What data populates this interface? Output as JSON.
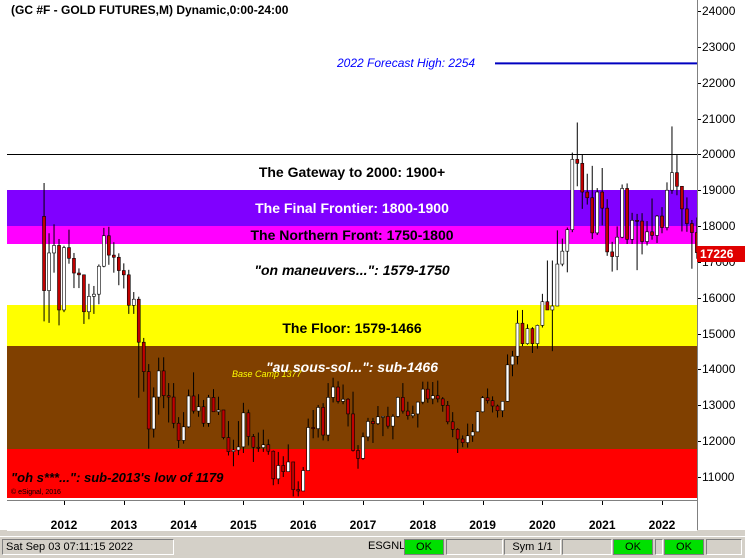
{
  "window": {
    "title": "(GC #F - GOLD FUTURES,M) Dynamic,0:00-24:00"
  },
  "status_bar": {
    "datetime": "Sat Sep 03 07:11:15 2022",
    "esgnl_label": "ESGNL:",
    "ok1": "OK",
    "sym_label": "Sym 1/1",
    "ok2": "OK",
    "ok3": "OK"
  },
  "colors": {
    "gateway": "#ffffff",
    "final_frontier": "#8000ff",
    "northern_front": "#ff00ff",
    "maneuvers": "#ffffff",
    "floor": "#ffff00",
    "sous_sol": "#804000",
    "oh_s": "#ff0000",
    "forecast_line": "#0000c0",
    "price_tag": "#e00000",
    "candle_up": "#ffffff",
    "candle_down": "#c00000"
  },
  "chart_data": {
    "type": "candlestick",
    "title": "(GC #F - GOLD FUTURES,M) Dynamic,0:00-24:00",
    "yaxis": {
      "ticks": [
        "24000",
        "23000",
        "22000",
        "21000",
        "20000",
        "19000",
        "18000",
        "17000",
        "16000",
        "15000",
        "14000",
        "13000",
        "12000",
        "11000"
      ],
      "range": [
        10400,
        24200
      ]
    },
    "xaxis": {
      "ticks": [
        "2012",
        "2013",
        "2014",
        "2015",
        "2016",
        "2017",
        "2018",
        "2019",
        "2020",
        "2021",
        "2022"
      ],
      "range": [
        "2011-09",
        "2022-09"
      ]
    },
    "last_price": "17226",
    "forecast": {
      "label": "2022 Forecast High:  2254",
      "value": 22540
    },
    "bands": [
      {
        "key": "gateway",
        "label": "The Gateway to 2000:  1900+",
        "low": 19000,
        "high": 20000,
        "text_color": "#000000",
        "italic": false
      },
      {
        "key": "final_frontier",
        "label": "The Final Frontier:  1800-1900",
        "low": 18000,
        "high": 19000,
        "text_color": "#ffffff",
        "italic": false
      },
      {
        "key": "northern_front",
        "label": "The Northern Front:  1750-1800",
        "low": 17500,
        "high": 18000,
        "text_color": "#000000",
        "italic": false
      },
      {
        "key": "maneuvers",
        "label": "\"on maneuvers...\":  1579-1750",
        "low": 15790,
        "high": 17500,
        "text_color": "#000000",
        "italic": true
      },
      {
        "key": "floor",
        "label": "The Floor:  1579-1466",
        "low": 14660,
        "high": 15790,
        "text_color": "#000000",
        "italic": false
      },
      {
        "key": "sous_sol",
        "label": "\"au sous-sol...\":  sub-1466",
        "low": 11790,
        "high": 14660,
        "text_color": "#ffffff",
        "italic": true
      },
      {
        "key": "oh_s",
        "label": "\"oh s***...\":  sub-2013's low of 1179",
        "low": 10400,
        "high": 11790,
        "text_color": "#000000",
        "italic": true
      }
    ],
    "annotations": {
      "base_camp": "Base Camp 1377",
      "copyright": "© eSignal, 2016"
    },
    "candles": [
      {
        "d": "2011-09",
        "o": 18270,
        "h": 19200,
        "l": 15340,
        "c": 16200
      },
      {
        "d": "2011-10",
        "o": 16200,
        "h": 17800,
        "l": 15300,
        "c": 17250
      },
      {
        "d": "2011-11",
        "o": 17250,
        "h": 18050,
        "l": 16700,
        "c": 17460
      },
      {
        "d": "2011-12",
        "o": 17460,
        "h": 17640,
        "l": 15230,
        "c": 15660
      },
      {
        "d": "2012-01",
        "o": 15660,
        "h": 17450,
        "l": 15600,
        "c": 17400
      },
      {
        "d": "2012-02",
        "o": 17400,
        "h": 17900,
        "l": 16950,
        "c": 17100
      },
      {
        "d": "2012-03",
        "o": 17100,
        "h": 17250,
        "l": 16270,
        "c": 16690
      },
      {
        "d": "2012-04",
        "o": 16690,
        "h": 16820,
        "l": 16270,
        "c": 16640
      },
      {
        "d": "2012-05",
        "o": 16640,
        "h": 16650,
        "l": 15270,
        "c": 15610
      },
      {
        "d": "2012-06",
        "o": 15610,
        "h": 16390,
        "l": 15400,
        "c": 16040
      },
      {
        "d": "2012-07",
        "o": 16040,
        "h": 16330,
        "l": 15550,
        "c": 16100
      },
      {
        "d": "2012-08",
        "o": 16100,
        "h": 16930,
        "l": 15820,
        "c": 16880
      },
      {
        "d": "2012-09",
        "o": 16880,
        "h": 17950,
        "l": 16850,
        "c": 17730
      },
      {
        "d": "2012-10",
        "o": 17730,
        "h": 17980,
        "l": 16920,
        "c": 17190
      },
      {
        "d": "2012-11",
        "o": 17190,
        "h": 17550,
        "l": 16700,
        "c": 17130
      },
      {
        "d": "2012-12",
        "o": 17130,
        "h": 17240,
        "l": 16350,
        "c": 16760
      },
      {
        "d": "2013-01",
        "o": 16760,
        "h": 16960,
        "l": 16260,
        "c": 16640
      },
      {
        "d": "2013-02",
        "o": 16640,
        "h": 16780,
        "l": 15550,
        "c": 15790
      },
      {
        "d": "2013-03",
        "o": 15790,
        "h": 16160,
        "l": 15550,
        "c": 15960
      },
      {
        "d": "2013-04",
        "o": 15960,
        "h": 16030,
        "l": 13210,
        "c": 14760
      },
      {
        "d": "2013-05",
        "o": 14760,
        "h": 14880,
        "l": 13380,
        "c": 13940
      },
      {
        "d": "2013-06",
        "o": 13940,
        "h": 14150,
        "l": 11790,
        "c": 12340
      },
      {
        "d": "2013-07",
        "o": 12340,
        "h": 13500,
        "l": 12100,
        "c": 13230
      },
      {
        "d": "2013-08",
        "o": 13230,
        "h": 14330,
        "l": 12740,
        "c": 13960
      },
      {
        "d": "2013-09",
        "o": 13960,
        "h": 14340,
        "l": 12920,
        "c": 13270
      },
      {
        "d": "2013-10",
        "o": 13270,
        "h": 13620,
        "l": 12520,
        "c": 13230
      },
      {
        "d": "2013-11",
        "o": 13230,
        "h": 13620,
        "l": 12360,
        "c": 12500
      },
      {
        "d": "2013-12",
        "o": 12500,
        "h": 12670,
        "l": 11810,
        "c": 12020
      },
      {
        "d": "2014-01",
        "o": 12020,
        "h": 12810,
        "l": 11930,
        "c": 12400
      },
      {
        "d": "2014-02",
        "o": 12400,
        "h": 13440,
        "l": 12370,
        "c": 13260
      },
      {
        "d": "2014-03",
        "o": 13260,
        "h": 13920,
        "l": 12770,
        "c": 12840
      },
      {
        "d": "2014-04",
        "o": 12840,
        "h": 13310,
        "l": 12680,
        "c": 12960
      },
      {
        "d": "2014-05",
        "o": 12960,
        "h": 13150,
        "l": 12400,
        "c": 12500
      },
      {
        "d": "2014-06",
        "o": 12500,
        "h": 13290,
        "l": 12400,
        "c": 13220
      },
      {
        "d": "2014-07",
        "o": 13220,
        "h": 13450,
        "l": 12820,
        "c": 12820
      },
      {
        "d": "2014-08",
        "o": 12820,
        "h": 13240,
        "l": 12730,
        "c": 12870
      },
      {
        "d": "2014-09",
        "o": 12870,
        "h": 12870,
        "l": 12050,
        "c": 12100
      },
      {
        "d": "2014-10",
        "o": 12100,
        "h": 12560,
        "l": 11600,
        "c": 11710
      },
      {
        "d": "2014-11",
        "o": 11710,
        "h": 12040,
        "l": 11300,
        "c": 11750
      },
      {
        "d": "2014-12",
        "o": 11750,
        "h": 12560,
        "l": 11610,
        "c": 11840
      },
      {
        "d": "2015-01",
        "o": 11840,
        "h": 13070,
        "l": 11670,
        "c": 12790
      },
      {
        "d": "2015-02",
        "o": 12790,
        "h": 12880,
        "l": 11880,
        "c": 12130
      },
      {
        "d": "2015-03",
        "o": 12130,
        "h": 12200,
        "l": 11420,
        "c": 11830
      },
      {
        "d": "2015-04",
        "o": 11830,
        "h": 12240,
        "l": 11700,
        "c": 11820
      },
      {
        "d": "2015-05",
        "o": 11820,
        "h": 12320,
        "l": 11700,
        "c": 11900
      },
      {
        "d": "2015-06",
        "o": 11900,
        "h": 12050,
        "l": 11620,
        "c": 11720
      },
      {
        "d": "2015-07",
        "o": 11720,
        "h": 11740,
        "l": 10770,
        "c": 10950
      },
      {
        "d": "2015-08",
        "o": 10950,
        "h": 11700,
        "l": 10800,
        "c": 11320
      },
      {
        "d": "2015-09",
        "o": 11320,
        "h": 11580,
        "l": 11000,
        "c": 11150
      },
      {
        "d": "2015-10",
        "o": 11150,
        "h": 11910,
        "l": 11150,
        "c": 11420
      },
      {
        "d": "2015-11",
        "o": 11420,
        "h": 11420,
        "l": 10460,
        "c": 10650
      },
      {
        "d": "2015-12",
        "o": 10650,
        "h": 10880,
        "l": 10460,
        "c": 10610
      },
      {
        "d": "2016-01",
        "o": 10610,
        "h": 11280,
        "l": 10620,
        "c": 11180
      },
      {
        "d": "2016-02",
        "o": 11180,
        "h": 12630,
        "l": 11180,
        "c": 12380
      },
      {
        "d": "2016-03",
        "o": 12380,
        "h": 12870,
        "l": 12080,
        "c": 12350
      },
      {
        "d": "2016-04",
        "o": 12350,
        "h": 13010,
        "l": 12100,
        "c": 12940
      },
      {
        "d": "2016-05",
        "o": 12940,
        "h": 13060,
        "l": 12020,
        "c": 12170
      },
      {
        "d": "2016-06",
        "o": 12170,
        "h": 13620,
        "l": 12000,
        "c": 13220
      },
      {
        "d": "2016-07",
        "o": 13220,
        "h": 13770,
        "l": 13080,
        "c": 13510
      },
      {
        "d": "2016-08",
        "o": 13510,
        "h": 13670,
        "l": 13050,
        "c": 13110
      },
      {
        "d": "2016-09",
        "o": 13110,
        "h": 13580,
        "l": 13030,
        "c": 13170
      },
      {
        "d": "2016-10",
        "o": 13170,
        "h": 13200,
        "l": 12410,
        "c": 12760
      },
      {
        "d": "2016-11",
        "o": 12760,
        "h": 13380,
        "l": 11710,
        "c": 11740
      },
      {
        "d": "2016-12",
        "o": 11740,
        "h": 11890,
        "l": 11230,
        "c": 11520
      },
      {
        "d": "2017-01",
        "o": 11520,
        "h": 12240,
        "l": 11480,
        "c": 12120
      },
      {
        "d": "2017-02",
        "o": 12120,
        "h": 12650,
        "l": 12000,
        "c": 12550
      },
      {
        "d": "2017-03",
        "o": 12550,
        "h": 12650,
        "l": 11950,
        "c": 12490
      },
      {
        "d": "2017-04",
        "o": 12490,
        "h": 12980,
        "l": 12450,
        "c": 12680
      },
      {
        "d": "2017-05",
        "o": 12680,
        "h": 12700,
        "l": 12140,
        "c": 12690
      },
      {
        "d": "2017-06",
        "o": 12690,
        "h": 12960,
        "l": 12350,
        "c": 12420
      },
      {
        "d": "2017-07",
        "o": 12420,
        "h": 12750,
        "l": 12050,
        "c": 12690
      },
      {
        "d": "2017-08",
        "o": 12690,
        "h": 13240,
        "l": 12660,
        "c": 13220
      },
      {
        "d": "2017-09",
        "o": 13220,
        "h": 13620,
        "l": 12770,
        "c": 12840
      },
      {
        "d": "2017-10",
        "o": 12840,
        "h": 13100,
        "l": 12600,
        "c": 12710
      },
      {
        "d": "2017-11",
        "o": 12710,
        "h": 12990,
        "l": 12640,
        "c": 12760
      },
      {
        "d": "2017-12",
        "o": 12760,
        "h": 13100,
        "l": 12380,
        "c": 13090
      },
      {
        "d": "2018-01",
        "o": 13090,
        "h": 13660,
        "l": 13030,
        "c": 13450
      },
      {
        "d": "2018-02",
        "o": 13450,
        "h": 13660,
        "l": 13070,
        "c": 13180
      },
      {
        "d": "2018-03",
        "o": 13180,
        "h": 13650,
        "l": 13030,
        "c": 13270
      },
      {
        "d": "2018-04",
        "o": 13270,
        "h": 13690,
        "l": 13080,
        "c": 13180
      },
      {
        "d": "2018-05",
        "o": 13180,
        "h": 13230,
        "l": 12820,
        "c": 13000
      },
      {
        "d": "2018-06",
        "o": 13000,
        "h": 13120,
        "l": 12470,
        "c": 12540
      },
      {
        "d": "2018-07",
        "o": 12540,
        "h": 12810,
        "l": 12110,
        "c": 12330
      },
      {
        "d": "2018-08",
        "o": 12330,
        "h": 12360,
        "l": 11670,
        "c": 12060
      },
      {
        "d": "2018-09",
        "o": 12060,
        "h": 12160,
        "l": 11830,
        "c": 11960
      },
      {
        "d": "2018-10",
        "o": 11960,
        "h": 12490,
        "l": 11820,
        "c": 12150
      },
      {
        "d": "2018-11",
        "o": 12150,
        "h": 12480,
        "l": 11980,
        "c": 12260
      },
      {
        "d": "2018-12",
        "o": 12260,
        "h": 12840,
        "l": 12350,
        "c": 12820
      },
      {
        "d": "2019-01",
        "o": 12820,
        "h": 13260,
        "l": 12800,
        "c": 13210
      },
      {
        "d": "2019-02",
        "o": 13210,
        "h": 13470,
        "l": 13050,
        "c": 13130
      },
      {
        "d": "2019-03",
        "o": 13130,
        "h": 13250,
        "l": 12800,
        "c": 12980
      },
      {
        "d": "2019-04",
        "o": 12980,
        "h": 13020,
        "l": 12660,
        "c": 12850
      },
      {
        "d": "2019-05",
        "o": 12850,
        "h": 13120,
        "l": 12670,
        "c": 13110
      },
      {
        "d": "2019-06",
        "o": 13110,
        "h": 14420,
        "l": 13100,
        "c": 14130
      },
      {
        "d": "2019-07",
        "o": 14130,
        "h": 14520,
        "l": 13810,
        "c": 14370
      },
      {
        "d": "2019-08",
        "o": 14370,
        "h": 15650,
        "l": 14140,
        "c": 15290
      },
      {
        "d": "2019-09",
        "o": 15290,
        "h": 15660,
        "l": 14650,
        "c": 14720
      },
      {
        "d": "2019-10",
        "o": 14720,
        "h": 15260,
        "l": 14690,
        "c": 15140
      },
      {
        "d": "2019-11",
        "o": 15140,
        "h": 15180,
        "l": 14460,
        "c": 14720
      },
      {
        "d": "2019-12",
        "o": 14720,
        "h": 15250,
        "l": 14580,
        "c": 15230
      },
      {
        "d": "2020-01",
        "o": 15230,
        "h": 16110,
        "l": 15170,
        "c": 15890
      },
      {
        "d": "2020-02",
        "o": 15890,
        "h": 17040,
        "l": 15750,
        "c": 15660
      },
      {
        "d": "2020-03",
        "o": 15660,
        "h": 17040,
        "l": 14510,
        "c": 15770
      },
      {
        "d": "2020-04",
        "o": 15770,
        "h": 17880,
        "l": 15800,
        "c": 16940
      },
      {
        "d": "2020-05",
        "o": 16940,
        "h": 17650,
        "l": 16880,
        "c": 17300
      },
      {
        "d": "2020-06",
        "o": 17300,
        "h": 17960,
        "l": 16710,
        "c": 17900
      },
      {
        "d": "2020-07",
        "o": 17900,
        "h": 20050,
        "l": 17830,
        "c": 19860
      },
      {
        "d": "2020-08",
        "o": 19860,
        "h": 20890,
        "l": 19110,
        "c": 19750
      },
      {
        "d": "2020-09",
        "o": 19750,
        "h": 19990,
        "l": 18480,
        "c": 18950
      },
      {
        "d": "2020-10",
        "o": 18950,
        "h": 19460,
        "l": 18600,
        "c": 18790
      },
      {
        "d": "2020-11",
        "o": 18790,
        "h": 19680,
        "l": 17640,
        "c": 17810
      },
      {
        "d": "2020-12",
        "o": 17810,
        "h": 19060,
        "l": 17750,
        "c": 18950
      },
      {
        "d": "2021-01",
        "o": 18950,
        "h": 19620,
        "l": 18020,
        "c": 18500
      },
      {
        "d": "2021-02",
        "o": 18500,
        "h": 18750,
        "l": 17170,
        "c": 17280
      },
      {
        "d": "2021-03",
        "o": 17280,
        "h": 17560,
        "l": 16730,
        "c": 17150
      },
      {
        "d": "2021-04",
        "o": 17150,
        "h": 17990,
        "l": 16770,
        "c": 17690
      },
      {
        "d": "2021-05",
        "o": 17690,
        "h": 19160,
        "l": 17660,
        "c": 19050
      },
      {
        "d": "2021-06",
        "o": 19050,
        "h": 19190,
        "l": 17500,
        "c": 17630
      },
      {
        "d": "2021-07",
        "o": 17630,
        "h": 18370,
        "l": 17500,
        "c": 18160
      },
      {
        "d": "2021-08",
        "o": 18160,
        "h": 18340,
        "l": 16770,
        "c": 18140
      },
      {
        "d": "2021-09",
        "o": 18140,
        "h": 18360,
        "l": 17210,
        "c": 17570
      },
      {
        "d": "2021-10",
        "o": 17570,
        "h": 18140,
        "l": 17460,
        "c": 17840
      },
      {
        "d": "2021-11",
        "o": 17840,
        "h": 18770,
        "l": 17620,
        "c": 17740
      },
      {
        "d": "2021-12",
        "o": 17740,
        "h": 18310,
        "l": 17530,
        "c": 18280
      },
      {
        "d": "2022-01",
        "o": 18280,
        "h": 18530,
        "l": 17800,
        "c": 17960
      },
      {
        "d": "2022-02",
        "o": 17960,
        "h": 19220,
        "l": 17880,
        "c": 19000
      },
      {
        "d": "2022-03",
        "o": 19000,
        "h": 20780,
        "l": 18900,
        "c": 19490
      },
      {
        "d": "2022-04",
        "o": 19490,
        "h": 19980,
        "l": 18860,
        "c": 19110
      },
      {
        "d": "2022-05",
        "o": 19110,
        "h": 19100,
        "l": 17850,
        "c": 18480
      },
      {
        "d": "2022-06",
        "o": 18480,
        "h": 18800,
        "l": 17840,
        "c": 18070
      },
      {
        "d": "2022-07",
        "o": 18070,
        "h": 18170,
        "l": 16810,
        "c": 17820
      },
      {
        "d": "2022-08",
        "o": 17820,
        "h": 18240,
        "l": 17090,
        "c": 17260
      },
      {
        "d": "2022-09",
        "o": 17260,
        "h": 17300,
        "l": 17080,
        "c": 17226
      }
    ]
  }
}
